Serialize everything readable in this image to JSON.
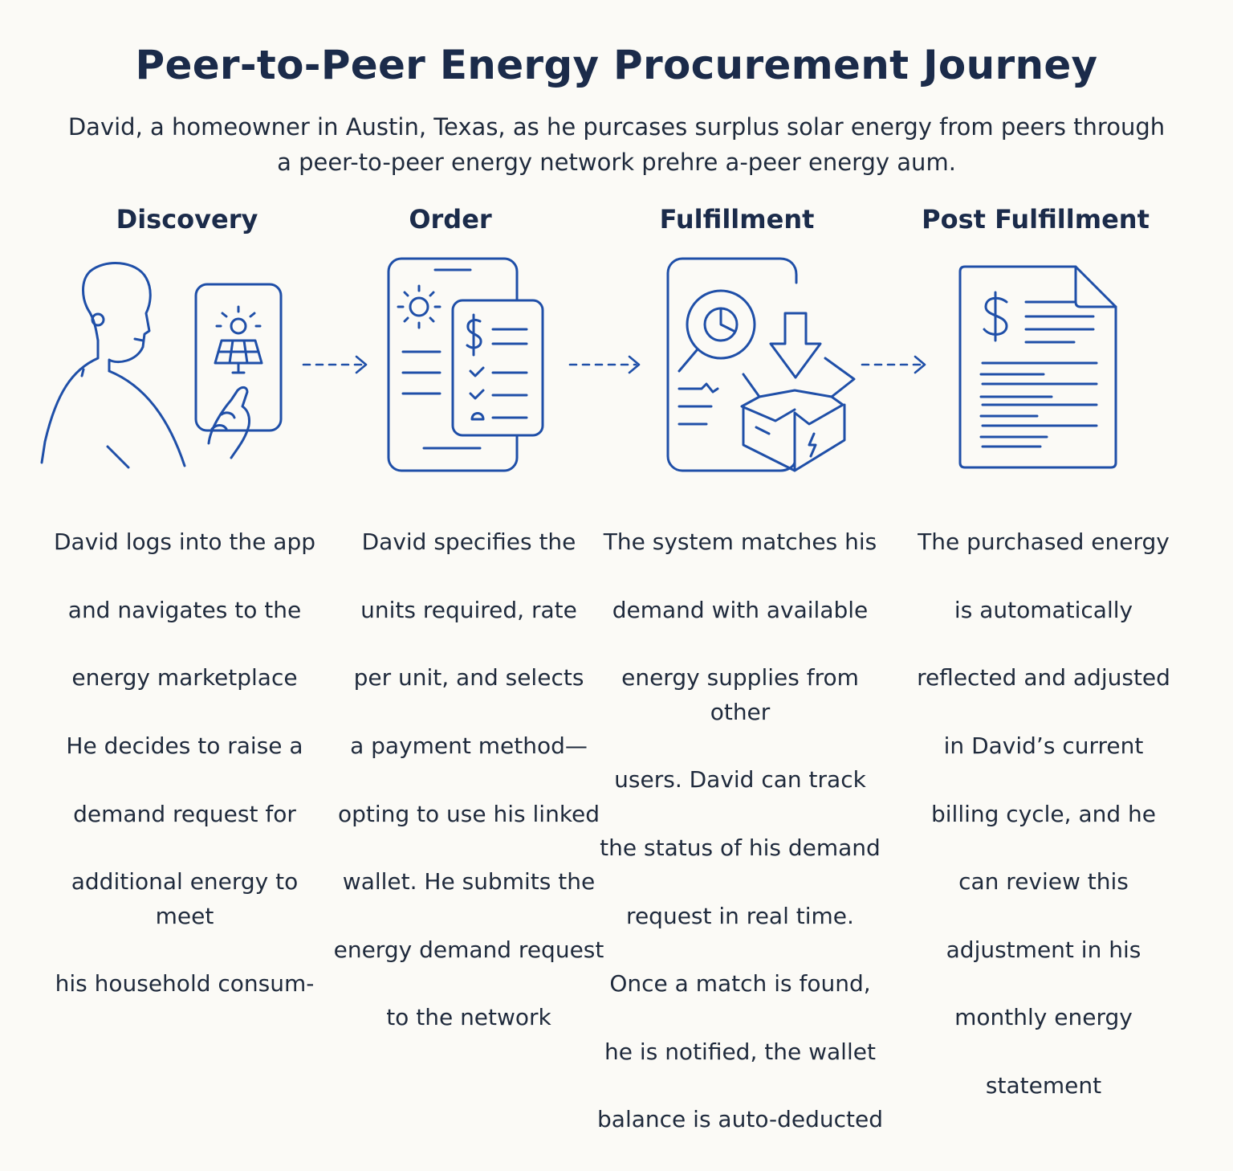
{
  "title": "Peer-to-Peer Energy Procurement Journey",
  "subtitle_lines": [
    "David, a homeowner in Austin, Texas, as he purcases surplus solar energy from peers through",
    "a peer-to-peer energy network prehre a-peer energy aum."
  ],
  "colors": {
    "accent": "#1f4fa8",
    "title": "#1b2b4a",
    "background": "#fbfaf6"
  },
  "stages": [
    {
      "name": "Discovery",
      "icon": "person-phone-solar-icon",
      "description_lines": [
        "David logs into the app",
        "and navigates to the",
        "energy marketplace",
        "He decides to raise a",
        "demand request for",
        "additional energy to meet",
        "his household consum-"
      ]
    },
    {
      "name": "Order",
      "icon": "phone-invoice-icon",
      "description_lines": [
        "David specifies the",
        "units required, rate",
        "per unit, and selects",
        "a payment method—",
        "opting to use his linked",
        "wallet. He submits the",
        "energy demand request",
        "to the network"
      ]
    },
    {
      "name": "Fulfillment",
      "icon": "phone-delivery-box-icon",
      "description_lines": [
        "The system matches his",
        "demand with available",
        "energy supplies from other",
        "users. David can track",
        "the status of his demand",
        "request in real time.",
        "Once a match is found,",
        "he is notified, the wallet",
        "balance is auto-deducted"
      ]
    },
    {
      "name": "Post Fulfillment",
      "icon": "billing-statement-icon",
      "description_lines": [
        "The purchased energy",
        "is automatically",
        "reflected and adjusted",
        "in David’s current",
        "billing cycle, and he",
        "can review this",
        "adjustment in his",
        "monthly energy",
        "statement"
      ]
    }
  ]
}
